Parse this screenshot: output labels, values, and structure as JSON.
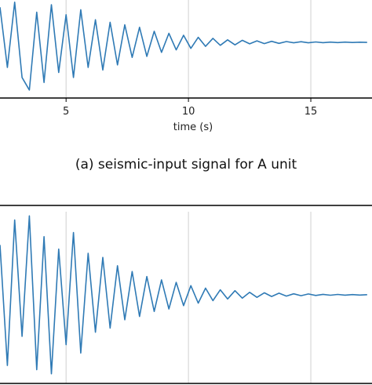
{
  "chart_data": [
    {
      "type": "line",
      "xlabel": "time (s)",
      "xlim": [
        2.3,
        17.5
      ],
      "ylim": [
        -1.0,
        1.0
      ],
      "xticks": [
        5,
        10,
        15
      ],
      "xtick_labels": [
        "5",
        "10",
        "15"
      ],
      "grid": true,
      "line_color": "#2f7ab5",
      "series": [
        {
          "x": [
            2.3,
            2.6,
            2.9,
            3.2,
            3.5,
            3.8,
            4.1,
            4.4,
            4.7,
            5.0,
            5.3,
            5.6,
            5.9,
            6.2,
            6.5,
            6.8,
            7.1,
            7.4,
            7.7,
            8.0,
            8.3,
            8.6,
            8.9,
            9.2,
            9.5,
            9.8,
            10.1,
            10.4,
            10.7,
            11.0,
            11.3,
            11.6,
            11.9,
            12.2,
            12.5,
            12.8,
            13.1,
            13.4,
            13.7,
            14.0,
            14.3,
            14.6,
            14.9,
            15.2,
            15.5,
            15.8,
            16.1,
            16.4,
            16.7,
            17.0,
            17.3
          ],
          "y": [
            0.7,
            -0.5,
            0.8,
            -0.7,
            -0.95,
            0.6,
            -0.8,
            0.75,
            -0.6,
            0.55,
            -0.7,
            0.65,
            -0.5,
            0.45,
            -0.55,
            0.4,
            -0.45,
            0.35,
            -0.3,
            0.3,
            -0.28,
            0.22,
            -0.2,
            0.18,
            -0.15,
            0.14,
            -0.12,
            0.1,
            -0.08,
            0.08,
            -0.06,
            0.05,
            -0.05,
            0.04,
            -0.03,
            0.03,
            -0.025,
            0.02,
            -0.02,
            0.015,
            -0.01,
            0.012,
            -0.01,
            0.008,
            -0.006,
            0.005,
            -0.005,
            0.004,
            -0.003,
            0.003,
            -0.002
          ]
        }
      ]
    },
    {
      "type": "line",
      "xlim": [
        2.3,
        17.5
      ],
      "ylim": [
        -1.0,
        1.0
      ],
      "xticks": [
        5,
        10,
        15
      ],
      "grid": true,
      "line_color": "#2f7ab5",
      "series": [
        {
          "x": [
            2.3,
            2.6,
            2.9,
            3.2,
            3.5,
            3.8,
            4.1,
            4.4,
            4.7,
            5.0,
            5.3,
            5.6,
            5.9,
            6.2,
            6.5,
            6.8,
            7.1,
            7.4,
            7.7,
            8.0,
            8.3,
            8.6,
            8.9,
            9.2,
            9.5,
            9.8,
            10.1,
            10.4,
            10.7,
            11.0,
            11.3,
            11.6,
            11.9,
            12.2,
            12.5,
            12.8,
            13.1,
            13.4,
            13.7,
            14.0,
            14.3,
            14.6,
            14.9,
            15.2,
            15.5,
            15.8,
            16.1,
            16.4,
            16.7,
            17.0,
            17.3
          ],
          "y": [
            0.6,
            -0.85,
            0.9,
            -0.5,
            0.95,
            -0.9,
            0.7,
            -0.95,
            0.55,
            -0.6,
            0.75,
            -0.7,
            0.5,
            -0.45,
            0.45,
            -0.4,
            0.35,
            -0.3,
            0.28,
            -0.26,
            0.22,
            -0.2,
            0.18,
            -0.17,
            0.15,
            -0.13,
            0.11,
            -0.1,
            0.08,
            -0.07,
            0.06,
            -0.05,
            0.05,
            -0.04,
            0.03,
            -0.03,
            0.025,
            -0.02,
            0.02,
            -0.015,
            0.012,
            -0.01,
            0.01,
            -0.008,
            0.006,
            -0.005,
            0.005,
            -0.004,
            0.003,
            -0.003,
            0.002
          ]
        }
      ]
    }
  ],
  "caption": "(a) seismic-input signal for A unit"
}
